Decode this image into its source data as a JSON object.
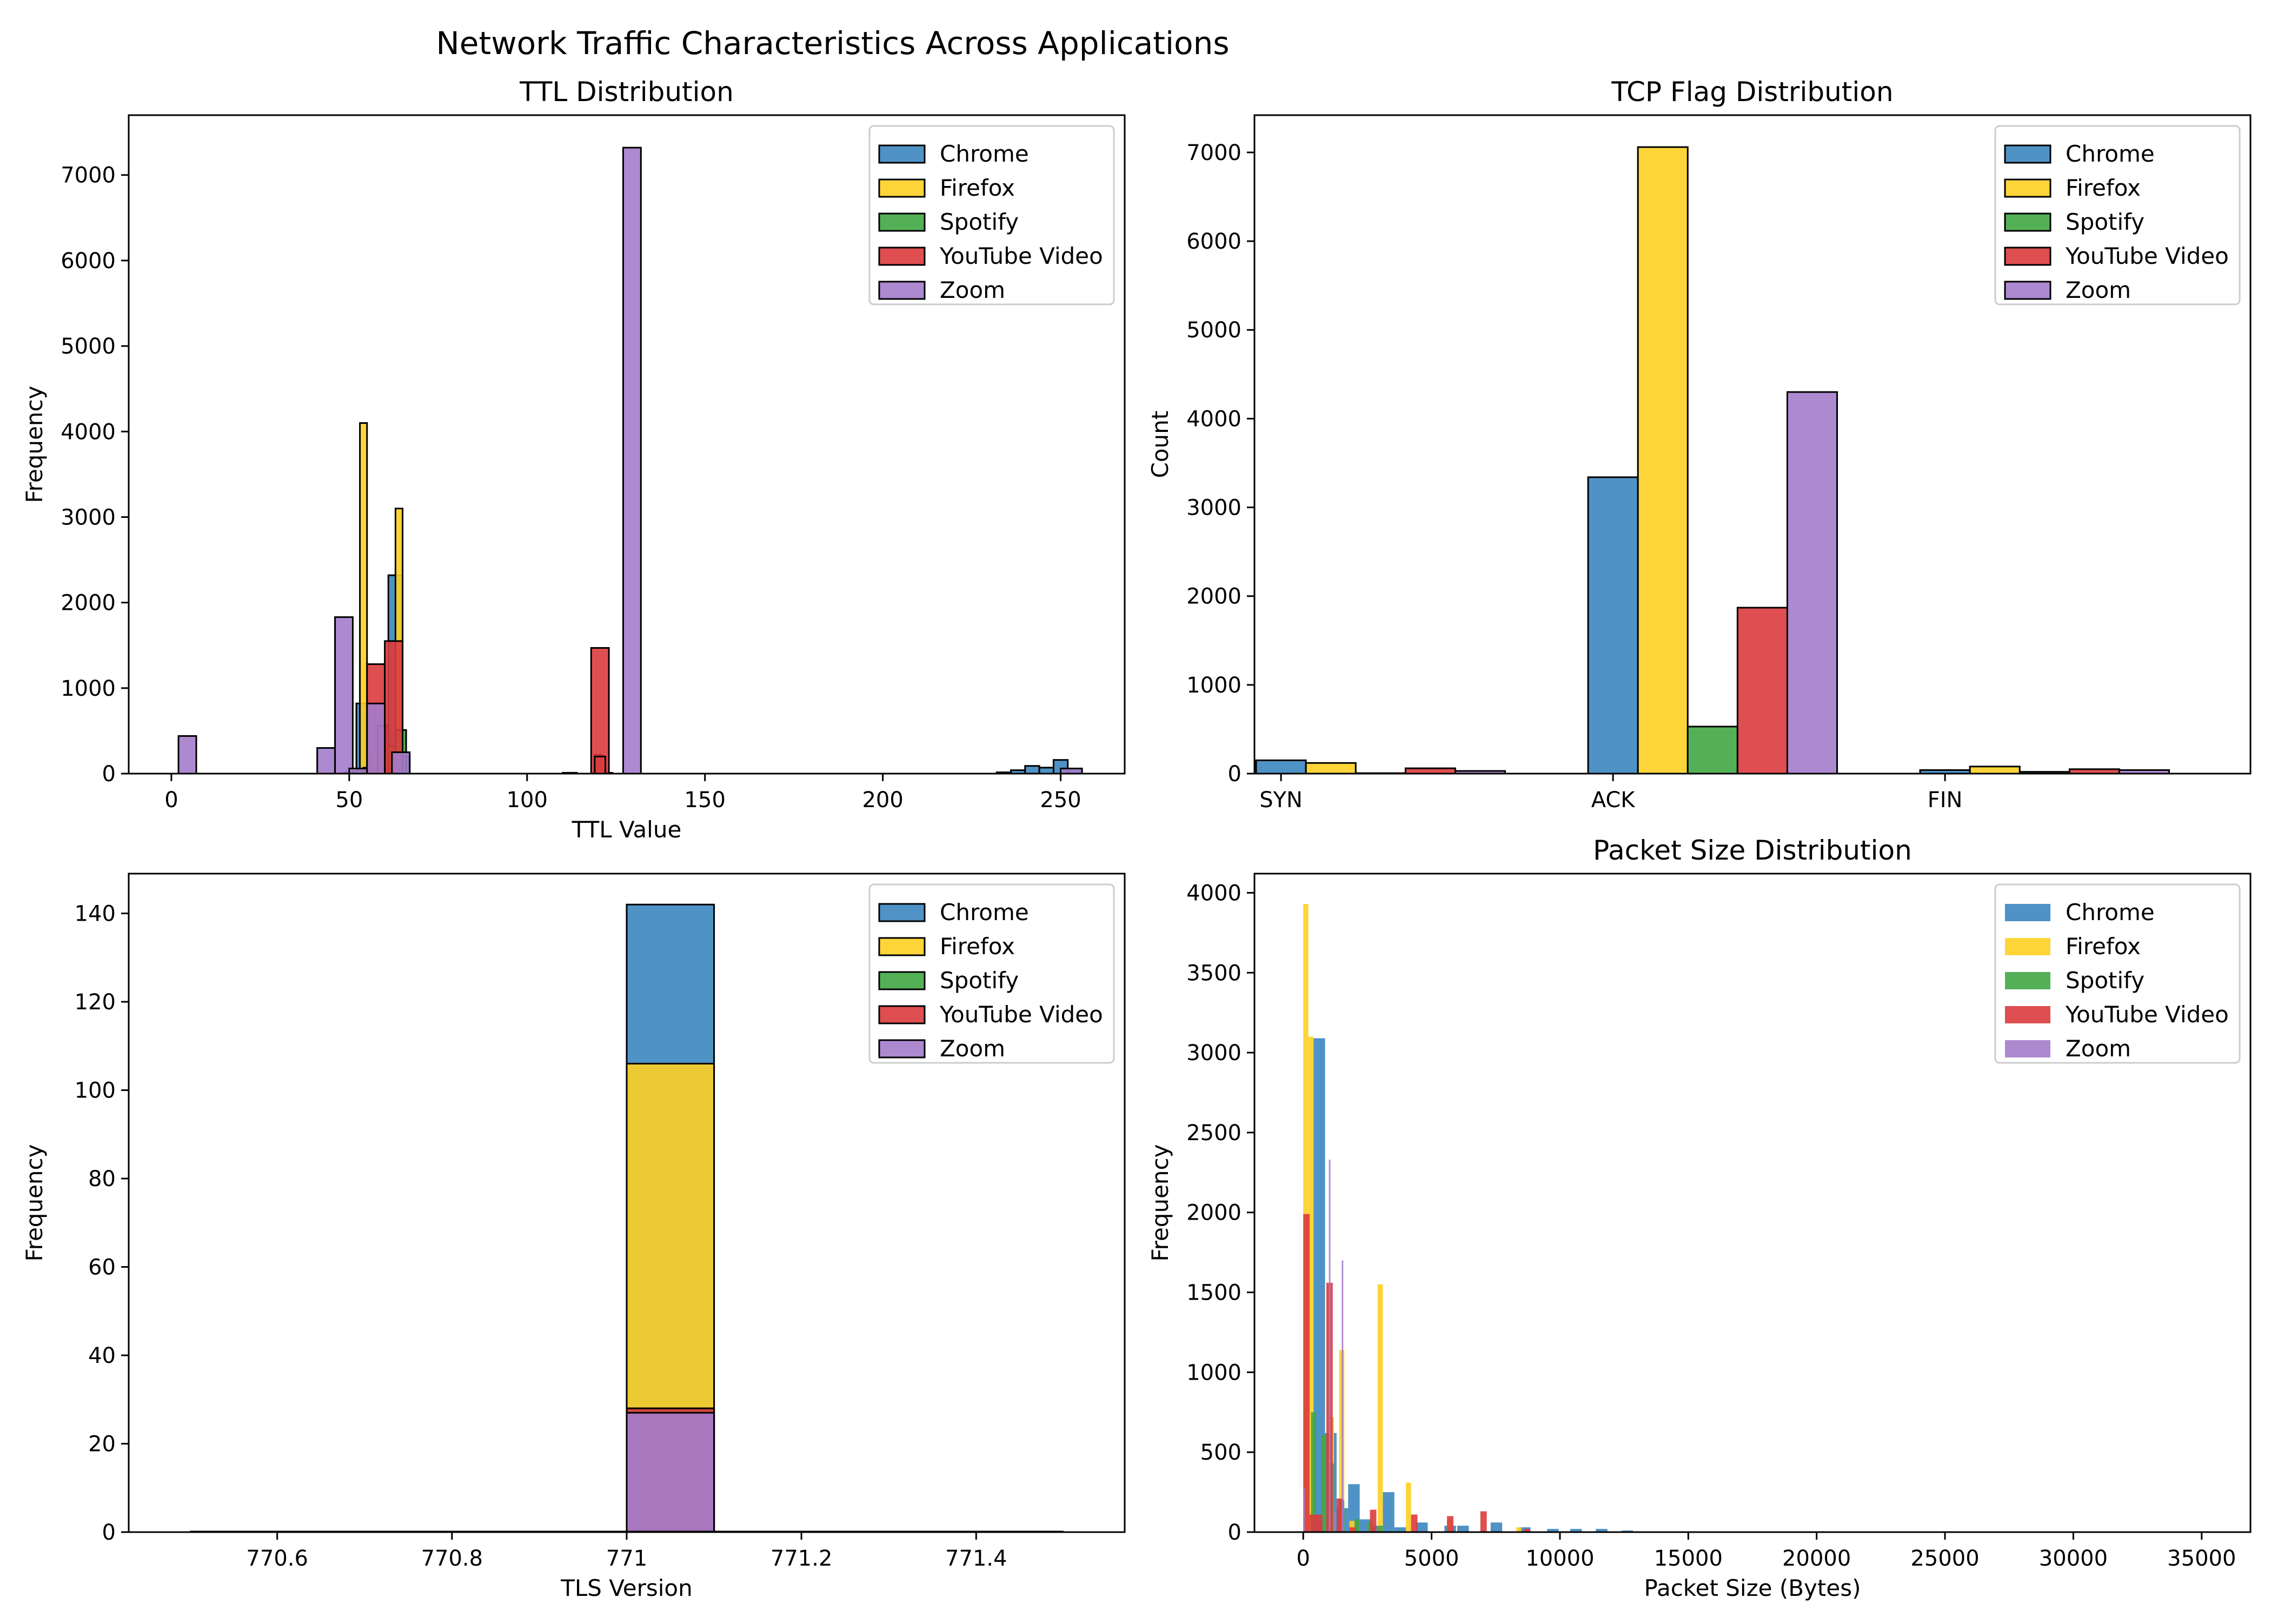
{
  "figure": {
    "title": "Network Traffic Characteristics Across Applications"
  },
  "colors": {
    "Chrome": "#3c86c0",
    "Firefox": "#fdd023",
    "Spotify": "#41a745",
    "YouTube Video": "#dc3b3d",
    "Zoom": "#a47ccb"
  },
  "chart_data": [
    {
      "id": "ttl",
      "type": "histogram",
      "title": "TTL Distribution",
      "xlabel": "TTL Value",
      "ylabel": "Frequency",
      "xlim": [
        -12,
        268
      ],
      "ylim": [
        0,
        7700
      ],
      "xticks": [
        0,
        50,
        100,
        150,
        200,
        250
      ],
      "yticks": [
        0,
        1000,
        2000,
        3000,
        4000,
        5000,
        6000,
        7000
      ],
      "legend": {
        "position": "top-right",
        "entries": [
          "Chrome",
          "Firefox",
          "Spotify",
          "YouTube Video",
          "Zoom"
        ]
      },
      "bar_outline": true,
      "series": [
        {
          "name": "Chrome",
          "bins": [
            [
              48,
              54,
              10
            ],
            [
              52,
              55,
              820
            ],
            [
              59,
              62,
              500
            ],
            [
              61,
              65,
              2320
            ],
            [
              64,
              67,
              200
            ],
            [
              110,
              114,
              10
            ],
            [
              120,
              124,
              10
            ],
            [
              232,
              236,
              15
            ],
            [
              236,
              240,
              40
            ],
            [
              240,
              244,
              90
            ],
            [
              244,
              248,
              70
            ],
            [
              248,
              252,
              160
            ],
            [
              252,
              256,
              60
            ]
          ]
        },
        {
          "name": "Firefox",
          "bins": [
            [
              53,
              55,
              4100
            ],
            [
              56,
              58,
              250
            ],
            [
              59,
              61,
              450
            ],
            [
              63,
              65,
              3100
            ],
            [
              119,
              121,
              220
            ]
          ]
        },
        {
          "name": "Spotify",
          "bins": [
            [
              49,
              52,
              20
            ],
            [
              52,
              55,
              40
            ],
            [
              55,
              58,
              50
            ],
            [
              57,
              60,
              100
            ],
            [
              60,
              63,
              320
            ],
            [
              63,
              66,
              510
            ]
          ]
        },
        {
          "name": "YouTube Video",
          "bins": [
            [
              54,
              57,
              70
            ],
            [
              55,
              60,
              1280
            ],
            [
              58,
              61,
              560
            ],
            [
              60,
              65,
              1550
            ],
            [
              118,
              123,
              1470
            ],
            [
              119,
              122,
              200
            ]
          ]
        },
        {
          "name": "Zoom",
          "bins": [
            [
              2,
              7,
              440
            ],
            [
              41,
              46,
              300
            ],
            [
              46,
              51,
              1830
            ],
            [
              50,
              55,
              60
            ],
            [
              55,
              60,
              820
            ],
            [
              62,
              67,
              250
            ],
            [
              127,
              132,
              7320
            ],
            [
              250,
              256,
              60
            ]
          ]
        }
      ]
    },
    {
      "id": "tcp",
      "type": "bar",
      "title": "TCP Flag Distribution",
      "xlabel": "",
      "ylabel": "Count",
      "categories": [
        "SYN",
        "ACK",
        "FIN"
      ],
      "xlim": [
        -0.08,
        2.92
      ],
      "ylim": [
        0,
        7420
      ],
      "yticks": [
        0,
        1000,
        2000,
        3000,
        4000,
        5000,
        6000,
        7000
      ],
      "bar_width": 0.15,
      "legend": {
        "position": "top-right",
        "entries": [
          "Chrome",
          "Firefox",
          "Spotify",
          "YouTube Video",
          "Zoom"
        ]
      },
      "series": [
        {
          "name": "Chrome",
          "values": [
            150,
            3340,
            40
          ]
        },
        {
          "name": "Firefox",
          "values": [
            120,
            7060,
            80
          ]
        },
        {
          "name": "Spotify",
          "values": [
            5,
            530,
            20
          ]
        },
        {
          "name": "YouTube Video",
          "values": [
            60,
            1870,
            50
          ]
        },
        {
          "name": "Zoom",
          "values": [
            30,
            4300,
            40
          ]
        }
      ]
    },
    {
      "id": "tls",
      "type": "histogram",
      "title": "",
      "xlabel": "TLS Version",
      "ylabel": "Frequency",
      "xlim": [
        770.43,
        771.57
      ],
      "ylim": [
        0,
        149
      ],
      "xticks": [
        770.6,
        770.8,
        771.0,
        771.2,
        771.4
      ],
      "yticks": [
        0,
        20,
        40,
        60,
        80,
        100,
        120,
        140
      ],
      "legend": {
        "position": "top-right",
        "entries": [
          "Chrome",
          "Firefox",
          "Spotify",
          "YouTube Video",
          "Zoom"
        ]
      },
      "bar_outline": true,
      "baseline": [
        770.5,
        771.5
      ],
      "series": [
        {
          "name": "Chrome",
          "bins": [
            [
              771.0,
              771.1,
              142
            ]
          ]
        },
        {
          "name": "Firefox",
          "bins": [
            [
              771.0,
              771.1,
              106
            ]
          ]
        },
        {
          "name": "Spotify",
          "bins": [
            [
              771.0,
              771.1,
              28
            ]
          ]
        },
        {
          "name": "YouTube Video",
          "bins": [
            [
              771.0,
              771.1,
              28
            ]
          ]
        },
        {
          "name": "Zoom",
          "bins": [
            [
              771.0,
              771.1,
              27
            ]
          ]
        }
      ]
    },
    {
      "id": "pkt",
      "type": "histogram",
      "title": "Packet Size Distribution",
      "xlabel": "Packet Size (Bytes)",
      "ylabel": "Frequency",
      "xlim": [
        -1900,
        36900
      ],
      "ylim": [
        0,
        4120
      ],
      "xticks": [
        0,
        5000,
        10000,
        15000,
        20000,
        25000,
        30000,
        35000
      ],
      "yticks": [
        0,
        500,
        1000,
        1500,
        2000,
        2500,
        3000,
        3500,
        4000
      ],
      "legend": {
        "position": "top-right",
        "entries": [
          "Chrome",
          "Firefox",
          "Spotify",
          "YouTube Video",
          "Zoom"
        ]
      },
      "bar_outline": false,
      "series": [
        {
          "name": "Chrome",
          "bins": [
            [
              400,
              850,
              3090
            ],
            [
              850,
              1300,
              620
            ],
            [
              1300,
              1750,
              150
            ],
            [
              1750,
              2200,
              300
            ],
            [
              2200,
              2650,
              80
            ],
            [
              2650,
              3100,
              40
            ],
            [
              3100,
              3550,
              250
            ],
            [
              3550,
              4000,
              30
            ],
            [
              4400,
              4850,
              60
            ],
            [
              5500,
              5950,
              40
            ],
            [
              6000,
              6450,
              40
            ],
            [
              7300,
              7750,
              60
            ],
            [
              8400,
              8850,
              30
            ],
            [
              9500,
              9950,
              20
            ],
            [
              10400,
              10850,
              20
            ],
            [
              11400,
              11850,
              20
            ],
            [
              12400,
              12850,
              10
            ],
            [
              14400,
              14850,
              5
            ]
          ]
        },
        {
          "name": "Firefox",
          "bins": [
            [
              0,
              200,
              3930
            ],
            [
              200,
              400,
              3100
            ],
            [
              1000,
              1200,
              720
            ],
            [
              1400,
              1600,
              1140
            ],
            [
              1800,
              2000,
              70
            ],
            [
              2900,
              3100,
              1550
            ],
            [
              4000,
              4200,
              310
            ],
            [
              5600,
              5800,
              80
            ],
            [
              8300,
              8500,
              30
            ]
          ]
        },
        {
          "name": "Spotify",
          "bins": [
            [
              300,
              500,
              750
            ],
            [
              700,
              900,
              610
            ],
            [
              1000,
              1200,
              430
            ],
            [
              1400,
              1600,
              200
            ],
            [
              2000,
              2200,
              80
            ],
            [
              2500,
              2700,
              60
            ],
            [
              2900,
              3100,
              40
            ]
          ]
        },
        {
          "name": "YouTube Video",
          "bins": [
            [
              0,
              250,
              1990
            ],
            [
              250,
              500,
              110
            ],
            [
              500,
              750,
              110
            ],
            [
              900,
              1150,
              1560
            ],
            [
              1300,
              1550,
              210
            ],
            [
              1800,
              2050,
              30
            ],
            [
              2600,
              2850,
              140
            ],
            [
              4200,
              4450,
              110
            ],
            [
              5600,
              5850,
              100
            ],
            [
              6900,
              7150,
              130
            ],
            [
              8600,
              8850,
              20
            ]
          ]
        },
        {
          "name": "Zoom",
          "bins": [
            [
              0,
              60,
              270
            ],
            [
              1000,
              1060,
              2330
            ],
            [
              1500,
              1560,
              1700
            ],
            [
              1200,
              1260,
              120
            ]
          ]
        }
      ]
    }
  ]
}
